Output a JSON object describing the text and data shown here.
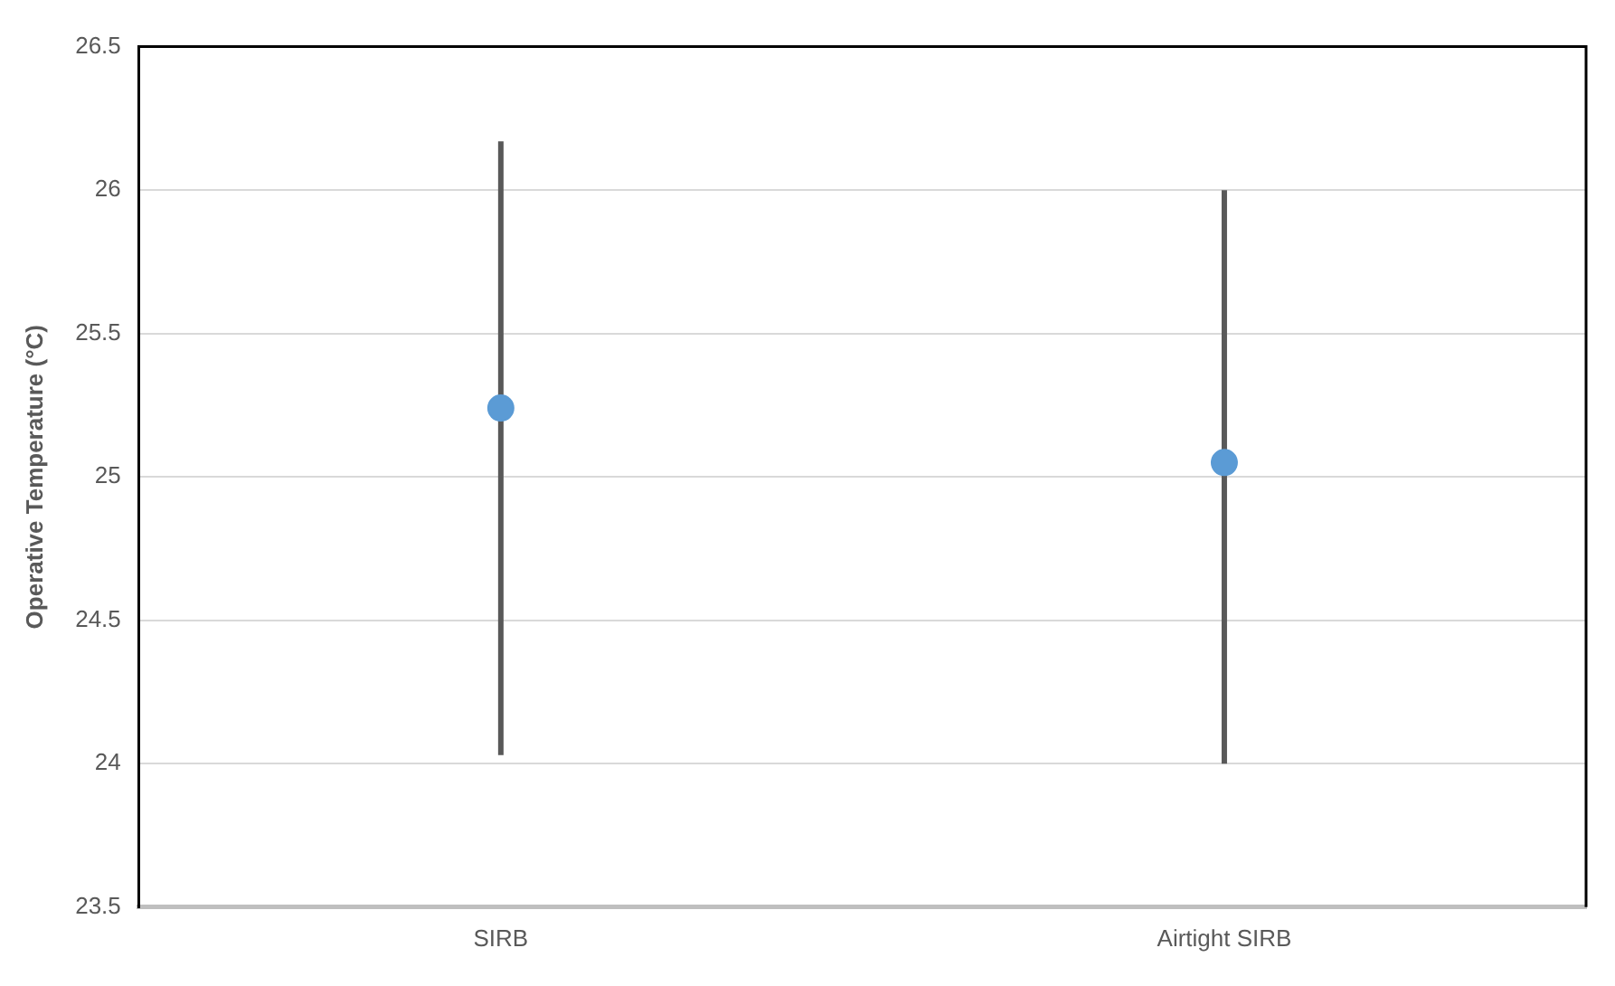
{
  "chart_data": {
    "type": "scatter",
    "ylabel": "Operative Temperature (°C)",
    "categories": [
      "SIRB",
      "Airtight SIRB"
    ],
    "series": [
      {
        "color": "#5b9bd5",
        "values": [
          25.24,
          25.05
        ],
        "errors": [
          [
            24.03,
            26.17
          ],
          [
            24.0,
            26.0
          ]
        ]
      }
    ],
    "ylim": [
      23.5,
      26.5
    ],
    "yticks": [
      23.5,
      24,
      24.5,
      25,
      25.5,
      26,
      26.5
    ],
    "grid": "y",
    "legend": false,
    "marker": "circle"
  }
}
